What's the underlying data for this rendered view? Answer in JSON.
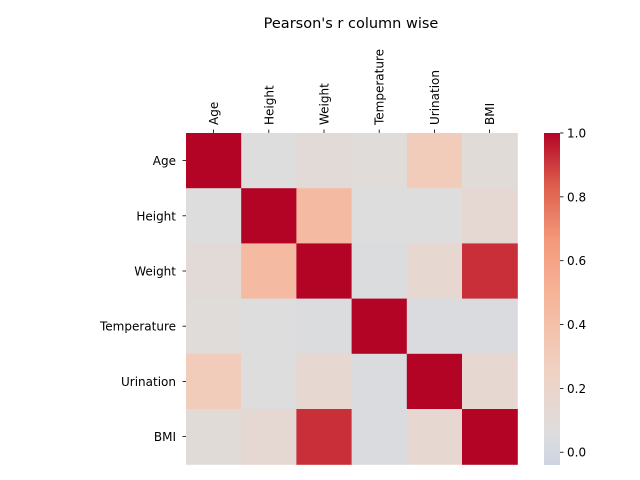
{
  "chart_data": {
    "type": "heatmap",
    "title": "Pearson's r column wise",
    "xlabel": "",
    "ylabel": "",
    "columns": [
      "Age",
      "Height",
      "Weight",
      "Temperature",
      "Urination",
      "BMI"
    ],
    "rows": [
      "Age",
      "Height",
      "Weight",
      "Temperature",
      "Urination",
      "BMI"
    ],
    "values": [
      [
        1.0,
        0.06,
        0.11,
        0.08,
        0.3,
        0.1
      ],
      [
        0.06,
        1.0,
        0.44,
        0.06,
        0.06,
        0.14
      ],
      [
        0.11,
        0.44,
        1.0,
        0.05,
        0.15,
        0.92
      ],
      [
        0.08,
        0.06,
        0.05,
        1.0,
        0.04,
        0.04
      ],
      [
        0.3,
        0.06,
        0.15,
        0.04,
        1.0,
        0.15
      ],
      [
        0.1,
        0.14,
        0.92,
        0.04,
        0.15,
        1.0
      ]
    ],
    "colorbar": {
      "min": -0.04,
      "max": 1.0,
      "center": 0.06,
      "ticks": [
        0.0,
        0.2,
        0.4,
        0.6,
        0.8,
        1.0
      ],
      "tick_labels": [
        "0.0",
        "0.2",
        "0.4",
        "0.6",
        "0.8",
        "1.0"
      ]
    },
    "colormap": "coolwarm-centered",
    "grid": false
  }
}
